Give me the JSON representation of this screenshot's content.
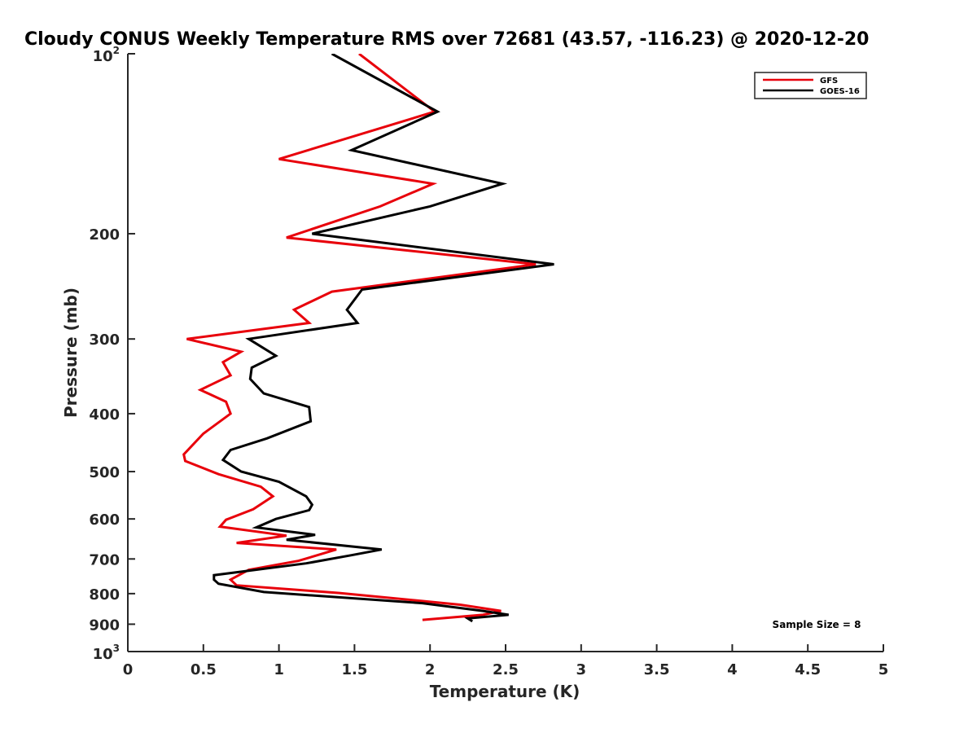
{
  "chart_data": {
    "type": "line",
    "title": "Cloudy CONUS Weekly Temperature RMS over 72681 (43.57, -116.23) @ 2020-12-20",
    "xlabel": "Temperature (K)",
    "ylabel": "Pressure (mb)",
    "xlim": [
      0,
      5
    ],
    "ylim": [
      100,
      1000
    ],
    "y_scale": "log",
    "y_reversed": true,
    "x_ticks": [
      "0",
      "0.5",
      "1",
      "1.5",
      "2",
      "2.5",
      "3",
      "3.5",
      "4",
      "4.5",
      "5"
    ],
    "x_tick_values": [
      0,
      0.5,
      1,
      1.5,
      2,
      2.5,
      3,
      3.5,
      4,
      4.5,
      5
    ],
    "y_ticks": [
      {
        "value": 100,
        "base": "10",
        "exp": "2"
      },
      {
        "value": 200,
        "label": "200"
      },
      {
        "value": 300,
        "label": "300"
      },
      {
        "value": 400,
        "label": "400"
      },
      {
        "value": 500,
        "label": "500"
      },
      {
        "value": 600,
        "label": "600"
      },
      {
        "value": 700,
        "label": "700"
      },
      {
        "value": 800,
        "label": "800"
      },
      {
        "value": 900,
        "label": "900"
      },
      {
        "value": 1000,
        "base": "10",
        "exp": "3"
      }
    ],
    "grid": false,
    "legend_position": "top-right",
    "annotation": "Sample Size = 8",
    "series": [
      {
        "name": "GFS",
        "color": "#e8000b",
        "points": [
          [
            1.53,
            100
          ],
          [
            2.03,
            125
          ],
          [
            1.0,
            150
          ],
          [
            2.02,
            165
          ],
          [
            1.67,
            180
          ],
          [
            1.05,
            203
          ],
          [
            2.7,
            225
          ],
          [
            1.35,
            250
          ],
          [
            1.1,
            268
          ],
          [
            1.2,
            282
          ],
          [
            0.39,
            300
          ],
          [
            0.75,
            315
          ],
          [
            0.63,
            328
          ],
          [
            0.68,
            345
          ],
          [
            0.48,
            365
          ],
          [
            0.65,
            382
          ],
          [
            0.68,
            400
          ],
          [
            0.5,
            432
          ],
          [
            0.37,
            468
          ],
          [
            0.38,
            480
          ],
          [
            0.6,
            505
          ],
          [
            0.88,
            530
          ],
          [
            0.96,
            550
          ],
          [
            0.83,
            578
          ],
          [
            0.65,
            602
          ],
          [
            0.61,
            618
          ],
          [
            1.05,
            640
          ],
          [
            0.72,
            658
          ],
          [
            1.38,
            675
          ],
          [
            1.13,
            705
          ],
          [
            0.8,
            730
          ],
          [
            0.68,
            758
          ],
          [
            0.72,
            775
          ],
          [
            1.4,
            798
          ],
          [
            2.2,
            835
          ],
          [
            2.47,
            855
          ],
          [
            2.35,
            868
          ],
          [
            1.95,
            885
          ]
        ]
      },
      {
        "name": "GOES-16",
        "color": "#000000",
        "points": [
          [
            1.35,
            100
          ],
          [
            2.05,
            125
          ],
          [
            1.48,
            145
          ],
          [
            2.48,
            165
          ],
          [
            2.0,
            180
          ],
          [
            1.22,
            200
          ],
          [
            2.82,
            225
          ],
          [
            1.55,
            248
          ],
          [
            1.45,
            268
          ],
          [
            1.52,
            282
          ],
          [
            0.8,
            300
          ],
          [
            0.98,
            320
          ],
          [
            0.82,
            335
          ],
          [
            0.81,
            350
          ],
          [
            0.9,
            370
          ],
          [
            1.2,
            390
          ],
          [
            1.21,
            412
          ],
          [
            0.92,
            440
          ],
          [
            0.68,
            460
          ],
          [
            0.63,
            478
          ],
          [
            0.75,
            500
          ],
          [
            1.0,
            520
          ],
          [
            1.18,
            550
          ],
          [
            1.22,
            568
          ],
          [
            1.2,
            580
          ],
          [
            0.98,
            600
          ],
          [
            0.85,
            620
          ],
          [
            1.24,
            638
          ],
          [
            1.05,
            650
          ],
          [
            1.68,
            675
          ],
          [
            1.48,
            690
          ],
          [
            1.18,
            712
          ],
          [
            0.57,
            745
          ],
          [
            0.57,
            758
          ],
          [
            0.6,
            770
          ],
          [
            0.9,
            795
          ],
          [
            1.95,
            830
          ],
          [
            2.35,
            855
          ],
          [
            2.52,
            868
          ],
          [
            2.25,
            880
          ],
          [
            2.28,
            890
          ]
        ]
      }
    ]
  }
}
